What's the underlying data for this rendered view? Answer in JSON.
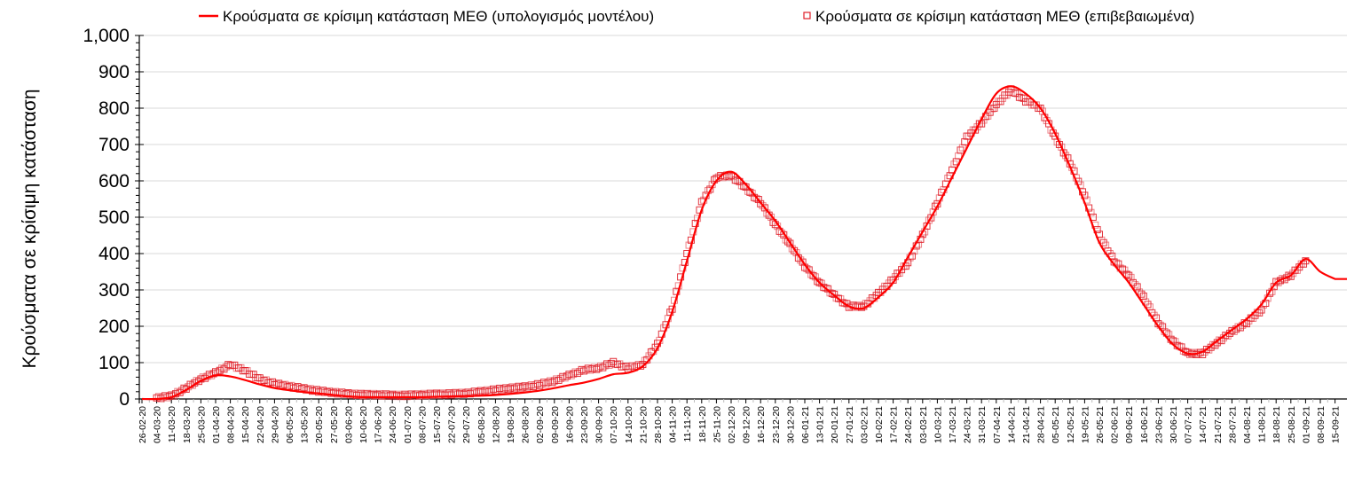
{
  "legend": {
    "model_label": "Κρούσματα σε κρίσιμη κατάσταση ΜΕΘ (υπολογισμός μοντέλου)",
    "confirmed_label": "Κρούσματα σε κρίσιμη κατάσταση ΜΕΘ (επιβεβαιωμένα)"
  },
  "axes": {
    "ylabel": "Κρούσματα σε κρίσιμη κατάσταση",
    "xlabel": ""
  },
  "colors": {
    "model_line": "#ff0000",
    "confirmed_marker": "#e0202a",
    "gridline": "#d9d9d9",
    "axis": "#000000"
  },
  "chart_data": {
    "type": "line",
    "title": "",
    "xlabel": "",
    "ylabel": "Κρούσματα σε κρίσιμη κατάσταση",
    "ylim": [
      0,
      1000
    ],
    "yticks": [
      0,
      100,
      200,
      300,
      400,
      500,
      600,
      700,
      800,
      900,
      1000
    ],
    "ytick_labels": [
      "0",
      "100",
      "200",
      "300",
      "400",
      "500",
      "600",
      "700",
      "800",
      "900",
      "1,000"
    ],
    "grid": true,
    "legend_position": "top",
    "categories": [
      "26-02-20",
      "04-03-20",
      "11-03-20",
      "18-03-20",
      "25-03-20",
      "01-04-20",
      "08-04-20",
      "15-04-20",
      "22-04-20",
      "29-04-20",
      "06-05-20",
      "13-05-20",
      "20-05-20",
      "27-05-20",
      "03-06-20",
      "10-06-20",
      "17-06-20",
      "24-06-20",
      "01-07-20",
      "08-07-20",
      "15-07-20",
      "22-07-20",
      "29-07-20",
      "05-08-20",
      "12-08-20",
      "19-08-20",
      "26-08-20",
      "02-09-20",
      "09-09-20",
      "16-09-20",
      "23-09-20",
      "30-09-20",
      "07-10-20",
      "14-10-20",
      "21-10-20",
      "28-10-20",
      "04-11-20",
      "11-11-20",
      "18-11-20",
      "25-11-20",
      "02-12-20",
      "09-12-20",
      "16-12-20",
      "23-12-20",
      "30-12-20",
      "06-01-21",
      "13-01-21",
      "20-01-21",
      "27-01-21",
      "03-02-21",
      "10-02-21",
      "17-02-21",
      "24-02-21",
      "03-03-21",
      "10-03-21",
      "17-03-21",
      "24-03-21",
      "31-03-21",
      "07-04-21",
      "14-04-21",
      "21-04-21",
      "28-04-21",
      "05-05-21",
      "12-05-21",
      "19-05-21",
      "26-05-21",
      "02-06-21",
      "09-06-21",
      "16-06-21",
      "23-06-21",
      "30-06-21",
      "07-07-21",
      "14-07-21",
      "21-07-21",
      "28-07-21",
      "04-08-21",
      "11-08-21",
      "18-08-21",
      "25-08-21",
      "01-09-21",
      "08-09-21",
      "15-09-21"
    ],
    "series": [
      {
        "name": "Κρούσματα σε κρίσιμη κατάσταση ΜΕΘ (υπολογισμός μοντέλου)",
        "style": "line",
        "values": [
          0,
          0,
          5,
          25,
          50,
          65,
          62,
          52,
          40,
          30,
          24,
          19,
          15,
          11,
          7,
          5,
          5,
          5,
          5,
          5,
          6,
          7,
          8,
          9,
          11,
          14,
          18,
          23,
          30,
          38,
          45,
          55,
          68,
          72,
          90,
          140,
          240,
          380,
          520,
          600,
          625,
          590,
          540,
          490,
          430,
          370,
          320,
          285,
          255,
          250,
          280,
          320,
          390,
          460,
          530,
          610,
          690,
          770,
          840,
          860,
          840,
          800,
          730,
          640,
          540,
          430,
          370,
          320,
          260,
          200,
          150,
          125,
          130,
          160,
          190,
          220,
          260,
          320,
          340,
          385,
          350,
          330
        ]
      },
      {
        "name": "Κρούσματα σε κρίσιμη κατάσταση ΜΕΘ (επιβεβαιωμένα)",
        "style": "marker-square-open",
        "values": [
          null,
          3,
          8,
          30,
          55,
          72,
          95,
          78,
          55,
          42,
          35,
          28,
          22,
          18,
          14,
          12,
          12,
          10,
          10,
          12,
          13,
          14,
          16,
          20,
          25,
          30,
          33,
          40,
          50,
          65,
          80,
          85,
          100,
          85,
          95,
          150,
          250,
          400,
          540,
          610,
          615,
          580,
          540,
          480,
          425,
          365,
          320,
          285,
          255,
          255,
          290,
          330,
          375,
          450,
          540,
          630,
          720,
          760,
          810,
          850,
          820,
          800,
          720,
          650,
          560,
          450,
          380,
          340,
          280,
          210,
          160,
          125,
          125,
          155,
          185,
          210,
          245,
          320,
          340,
          380,
          null,
          null
        ]
      }
    ]
  }
}
